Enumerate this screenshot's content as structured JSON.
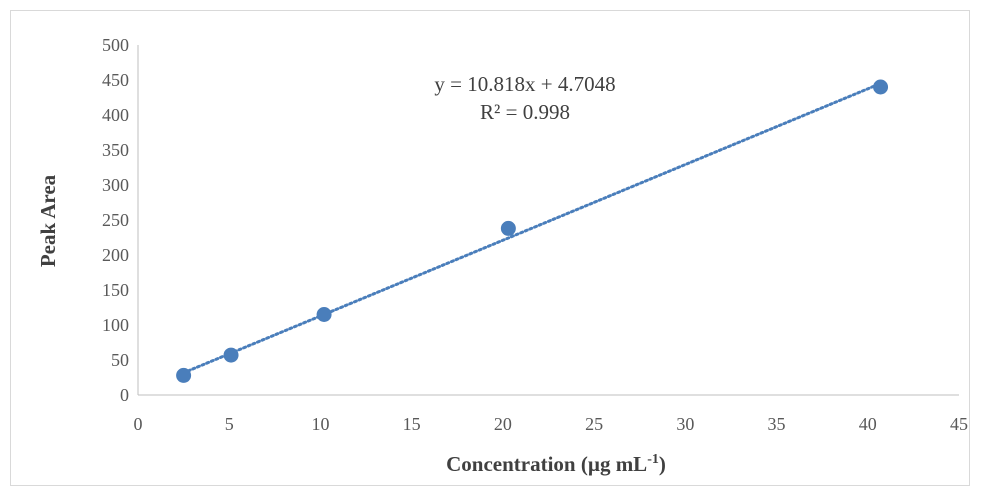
{
  "chart_data": {
    "type": "scatter",
    "title": "",
    "xlabel": "Concentration (µg mL",
    "xlabel_sup": "-1",
    "xlabel_close": ")",
    "ylabel": "Peak Area",
    "xlim": [
      0,
      45
    ],
    "ylim": [
      0,
      500
    ],
    "x_ticks": [
      "0",
      "5",
      "10",
      "15",
      "20",
      "25",
      "30",
      "35",
      "40",
      "45"
    ],
    "y_ticks": [
      "0",
      "50",
      "100",
      "150",
      "200",
      "250",
      "300",
      "350",
      "400",
      "450",
      "500"
    ],
    "grid": false,
    "legend": "none",
    "series": [
      {
        "x": [
          2.5,
          5.1,
          10.2,
          20.3,
          40.7
        ],
        "y": [
          28,
          57,
          115,
          238,
          440
        ],
        "color": "#4a7ebb"
      }
    ],
    "trendline": {
      "type": "linear",
      "slope": 10.818,
      "intercept": 4.7048,
      "x_range": [
        2.5,
        40.7
      ],
      "style": "dotted",
      "color": "#4a7ebb"
    },
    "annotations": {
      "equation": "y = 10.818x + 4.7048",
      "r_squared": "R² = 0.998"
    }
  }
}
